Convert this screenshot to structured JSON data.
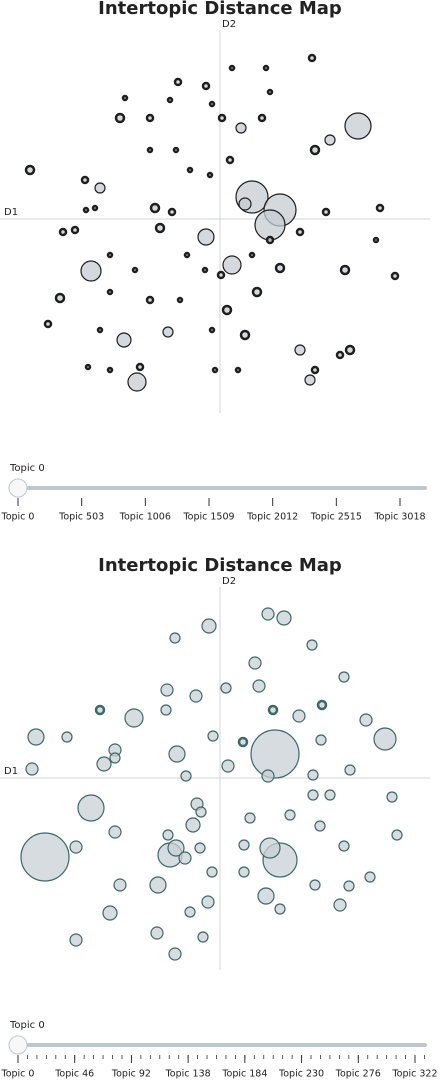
{
  "chart_data": [
    {
      "type": "scatter",
      "title": "Intertopic Distance Map",
      "xlabel": "D1",
      "ylabel": "D2",
      "xlim": [
        -210,
        210
      ],
      "ylim": [
        -196,
        196
      ],
      "color": "#c5ccd1",
      "edge_color": "#1e1e1e",
      "x": [
        138,
        32,
        60,
        50,
        12,
        -14,
        -129,
        -83,
        -96,
        21,
        25,
        -190,
        -120,
        -65,
        -60,
        -48,
        -100,
        -70,
        -42,
        -14,
        -50,
        -95,
        -8,
        2,
        42,
        10,
        -10,
        -30,
        -44,
        -70,
        50,
        12,
        92,
        46,
        110,
        95,
        80,
        106,
        125,
        160,
        175,
        156,
        -157,
        -145,
        -134,
        -160,
        -172,
        -120,
        -110,
        -70,
        -52,
        -40,
        -8,
        -5,
        25,
        7,
        18,
        37,
        60,
        50,
        80,
        90,
        130,
        120,
        95,
        -33,
        -15,
        1,
        32,
        -85,
        -110,
        -80,
        -132,
        -110,
        -135,
        -125
      ],
      "y": [
        93,
        22,
        9,
        -6,
        -46,
        -18,
        -52,
        -163,
        -121,
        91,
        15,
        49,
        31,
        11,
        -9,
        7,
        101,
        101,
        137,
        133,
        119,
        121,
        115,
        101,
        101,
        59,
        44,
        49,
        69,
        69,
        127,
        151,
        161,
        151,
        79,
        69,
        -13,
        7,
        -51,
        11,
        -57,
        -21,
        -13,
        -11,
        9,
        -79,
        -105,
        -111,
        -73,
        -81,
        -113,
        -81,
        -111,
        -151,
        -116,
        -91,
        -151,
        -73,
        -49,
        -21,
        -131,
        -161,
        -131,
        -136,
        -151,
        -36,
        -51,
        -56,
        -36,
        -51,
        -36,
        -148,
        -148,
        -151,
        39,
        11
      ],
      "sizes": [
        13,
        16,
        16,
        15,
        9,
        8,
        10,
        9,
        7,
        5,
        6,
        4,
        5,
        4,
        4,
        3,
        4,
        3,
        3,
        3,
        2,
        2,
        2,
        3,
        3,
        3,
        2,
        2,
        2,
        2,
        2,
        2,
        3,
        2,
        5,
        4,
        3,
        3,
        4,
        3,
        3,
        2,
        3,
        3,
        2,
        4,
        3,
        2,
        2,
        3,
        5,
        2,
        2,
        2,
        4,
        4,
        2,
        4,
        4,
        3,
        5,
        5,
        4,
        3,
        3,
        2,
        2,
        3,
        2,
        2,
        2,
        3,
        2,
        2,
        3,
        2
      ],
      "slider": {
        "label": "Topic 0",
        "ticks": [
          "Topic 0",
          "Topic 503",
          "Topic 1006",
          "Topic 1509",
          "Topic 2012",
          "Topic 2515",
          "Topic 3018"
        ]
      }
    },
    {
      "type": "scatter",
      "title": "Intertopic Distance Map",
      "xlabel": "D1",
      "ylabel": "D2",
      "xlim": [
        -210,
        210
      ],
      "ylim": [
        -190,
        190
      ],
      "color": "#c8d0d4",
      "edge_color": "#3d6868",
      "x": [
        48,
        64,
        -11,
        -45,
        92,
        35,
        39,
        124,
        -53,
        -24,
        6,
        -120,
        -86,
        -54,
        53,
        79,
        102,
        -184,
        -153,
        -105,
        -105,
        -116,
        -43,
        -7,
        23,
        55,
        146,
        165,
        101,
        -188,
        -34,
        8,
        48,
        93,
        130,
        -129,
        -23,
        -19,
        -27,
        30,
        70,
        93,
        110,
        172,
        -105,
        100,
        177,
        -175,
        -144,
        -52,
        -44,
        -50,
        -35,
        -20,
        24,
        50,
        60,
        124,
        -100,
        -62,
        -8,
        24,
        46,
        95,
        129,
        150,
        -12,
        -110,
        -30,
        60,
        120,
        -63,
        -17,
        -144,
        -45
      ],
      "y": [
        164,
        160,
        152,
        140,
        133,
        115,
        92,
        101,
        88,
        82,
        90,
        68,
        60,
        68,
        68,
        62,
        73,
        41,
        41,
        28,
        20,
        14,
        24,
        42,
        36,
        24,
        58,
        39,
        38,
        9,
        2,
        12,
        2,
        3,
        8,
        -30,
        -26,
        -34,
        -47,
        -40,
        -37,
        -17,
        -17,
        -19,
        -54,
        -48,
        -57,
        -79,
        -69,
        -57,
        -70,
        -77,
        -80,
        -70,
        -67,
        -70,
        -82,
        -68,
        -107,
        -107,
        -94,
        -94,
        -118,
        -107,
        -108,
        -99,
        -124,
        -135,
        -134,
        -131,
        -127,
        -155,
        -159,
        -162,
        -176
      ],
      "sizes": [
        6,
        7,
        7,
        5,
        5,
        6,
        6,
        5,
        6,
        6,
        5,
        4,
        9,
        5,
        4,
        6,
        4,
        8,
        5,
        6,
        5,
        7,
        8,
        5,
        4,
        24,
        6,
        11,
        5,
        6,
        5,
        6,
        6,
        5,
        5,
        13,
        6,
        5,
        7,
        5,
        5,
        5,
        5,
        5,
        6,
        5,
        5,
        24,
        6,
        5,
        8,
        12,
        6,
        5,
        5,
        10,
        17,
        5,
        6,
        8,
        5,
        5,
        8,
        5,
        5,
        5,
        6,
        7,
        5,
        5,
        6,
        6,
        5,
        6,
        6
      ],
      "slider": {
        "label": "Topic 0",
        "ticks": [
          "Topic 0",
          "Topic 46",
          "Topic 92",
          "Topic 138",
          "Topic 184",
          "Topic 230",
          "Topic 276",
          "Topic 322"
        ]
      }
    }
  ]
}
